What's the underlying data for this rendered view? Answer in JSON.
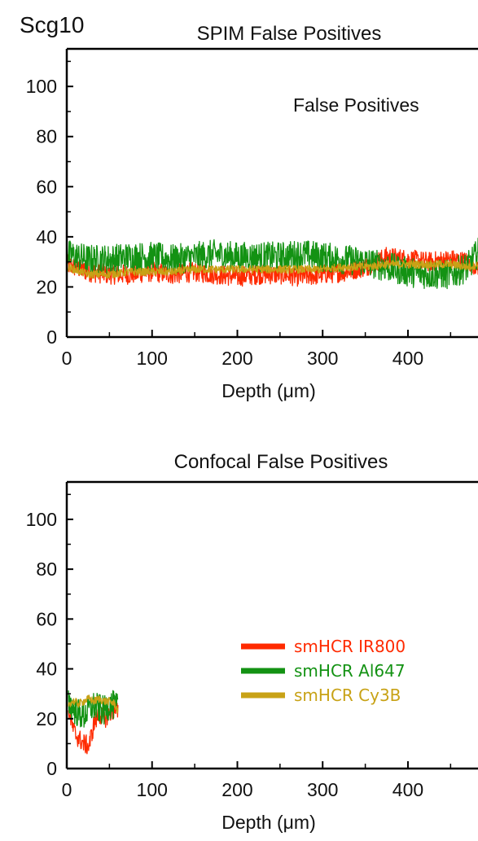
{
  "figure": {
    "label": "Scg10"
  },
  "chart_data": [
    {
      "type": "line",
      "title": "SPIM False Positives",
      "annotation": "False Positives",
      "xlabel": "Depth (μm)",
      "ylabel": "",
      "xlim": [
        0,
        485
      ],
      "ylim": [
        0,
        115
      ],
      "xticks": [
        0,
        100,
        200,
        300,
        400
      ],
      "yticks": [
        0,
        20,
        40,
        60,
        80,
        100
      ],
      "series": [
        {
          "name": "smHCR IR800",
          "color": "#ff2a00",
          "x": [
            0,
            25,
            50,
            75,
            100,
            125,
            150,
            175,
            200,
            225,
            250,
            275,
            300,
            325,
            350,
            375,
            400,
            425,
            450,
            470,
            485
          ],
          "y": [
            29,
            26,
            25,
            25,
            26,
            25,
            26,
            25,
            24,
            25,
            25,
            24,
            25,
            26,
            28,
            32,
            31,
            30,
            31,
            30,
            28
          ]
        },
        {
          "name": "smHCR Al647",
          "color": "#139213",
          "x": [
            0,
            25,
            50,
            75,
            100,
            125,
            150,
            175,
            200,
            225,
            250,
            275,
            300,
            325,
            350,
            375,
            400,
            425,
            450,
            470,
            485
          ],
          "y": [
            33,
            31,
            31,
            32,
            32,
            31,
            32,
            33,
            32,
            32,
            32,
            33,
            32,
            31,
            30,
            28,
            26,
            25,
            25,
            28,
            35
          ]
        },
        {
          "name": "smHCR Cy3B",
          "color": "#c8a216",
          "x": [
            0,
            25,
            50,
            75,
            100,
            125,
            150,
            175,
            200,
            225,
            250,
            275,
            300,
            325,
            350,
            375,
            400,
            425,
            450,
            470,
            485
          ],
          "y": [
            28,
            25,
            25,
            26,
            26,
            26,
            27,
            27,
            27,
            27,
            27,
            27,
            27,
            28,
            28,
            29,
            29,
            29,
            29,
            28,
            29
          ]
        }
      ]
    },
    {
      "type": "line",
      "title": "Confocal False Positives",
      "xlabel": "Depth (μm)",
      "ylabel": "",
      "xlim": [
        0,
        485
      ],
      "ylim": [
        0,
        115
      ],
      "xticks": [
        0,
        100,
        200,
        300,
        400
      ],
      "yticks": [
        0,
        20,
        40,
        60,
        80,
        100
      ],
      "legend": {
        "position": "right-center",
        "entries": [
          "smHCR IR800",
          "smHCR Al647",
          "smHCR Cy3B"
        ]
      },
      "series": [
        {
          "name": "smHCR IR800",
          "color": "#ff2a00",
          "x": [
            2,
            8,
            14,
            20,
            26,
            32,
            38,
            44,
            50,
            56,
            60
          ],
          "y": [
            24,
            15,
            12,
            10,
            9,
            18,
            22,
            20,
            22,
            24,
            22
          ]
        },
        {
          "name": "smHCR Al647",
          "color": "#139213",
          "x": [
            2,
            8,
            14,
            20,
            26,
            32,
            38,
            44,
            50,
            56,
            60
          ],
          "y": [
            27,
            24,
            22,
            21,
            24,
            25,
            24,
            23,
            26,
            25,
            24
          ]
        },
        {
          "name": "smHCR Cy3B",
          "color": "#c8a216",
          "x": [
            2,
            8,
            14,
            20,
            26,
            32,
            38,
            44,
            50,
            56,
            60
          ],
          "y": [
            26,
            27,
            26,
            27,
            28,
            27,
            28,
            27,
            27,
            26,
            23
          ]
        }
      ]
    }
  ]
}
